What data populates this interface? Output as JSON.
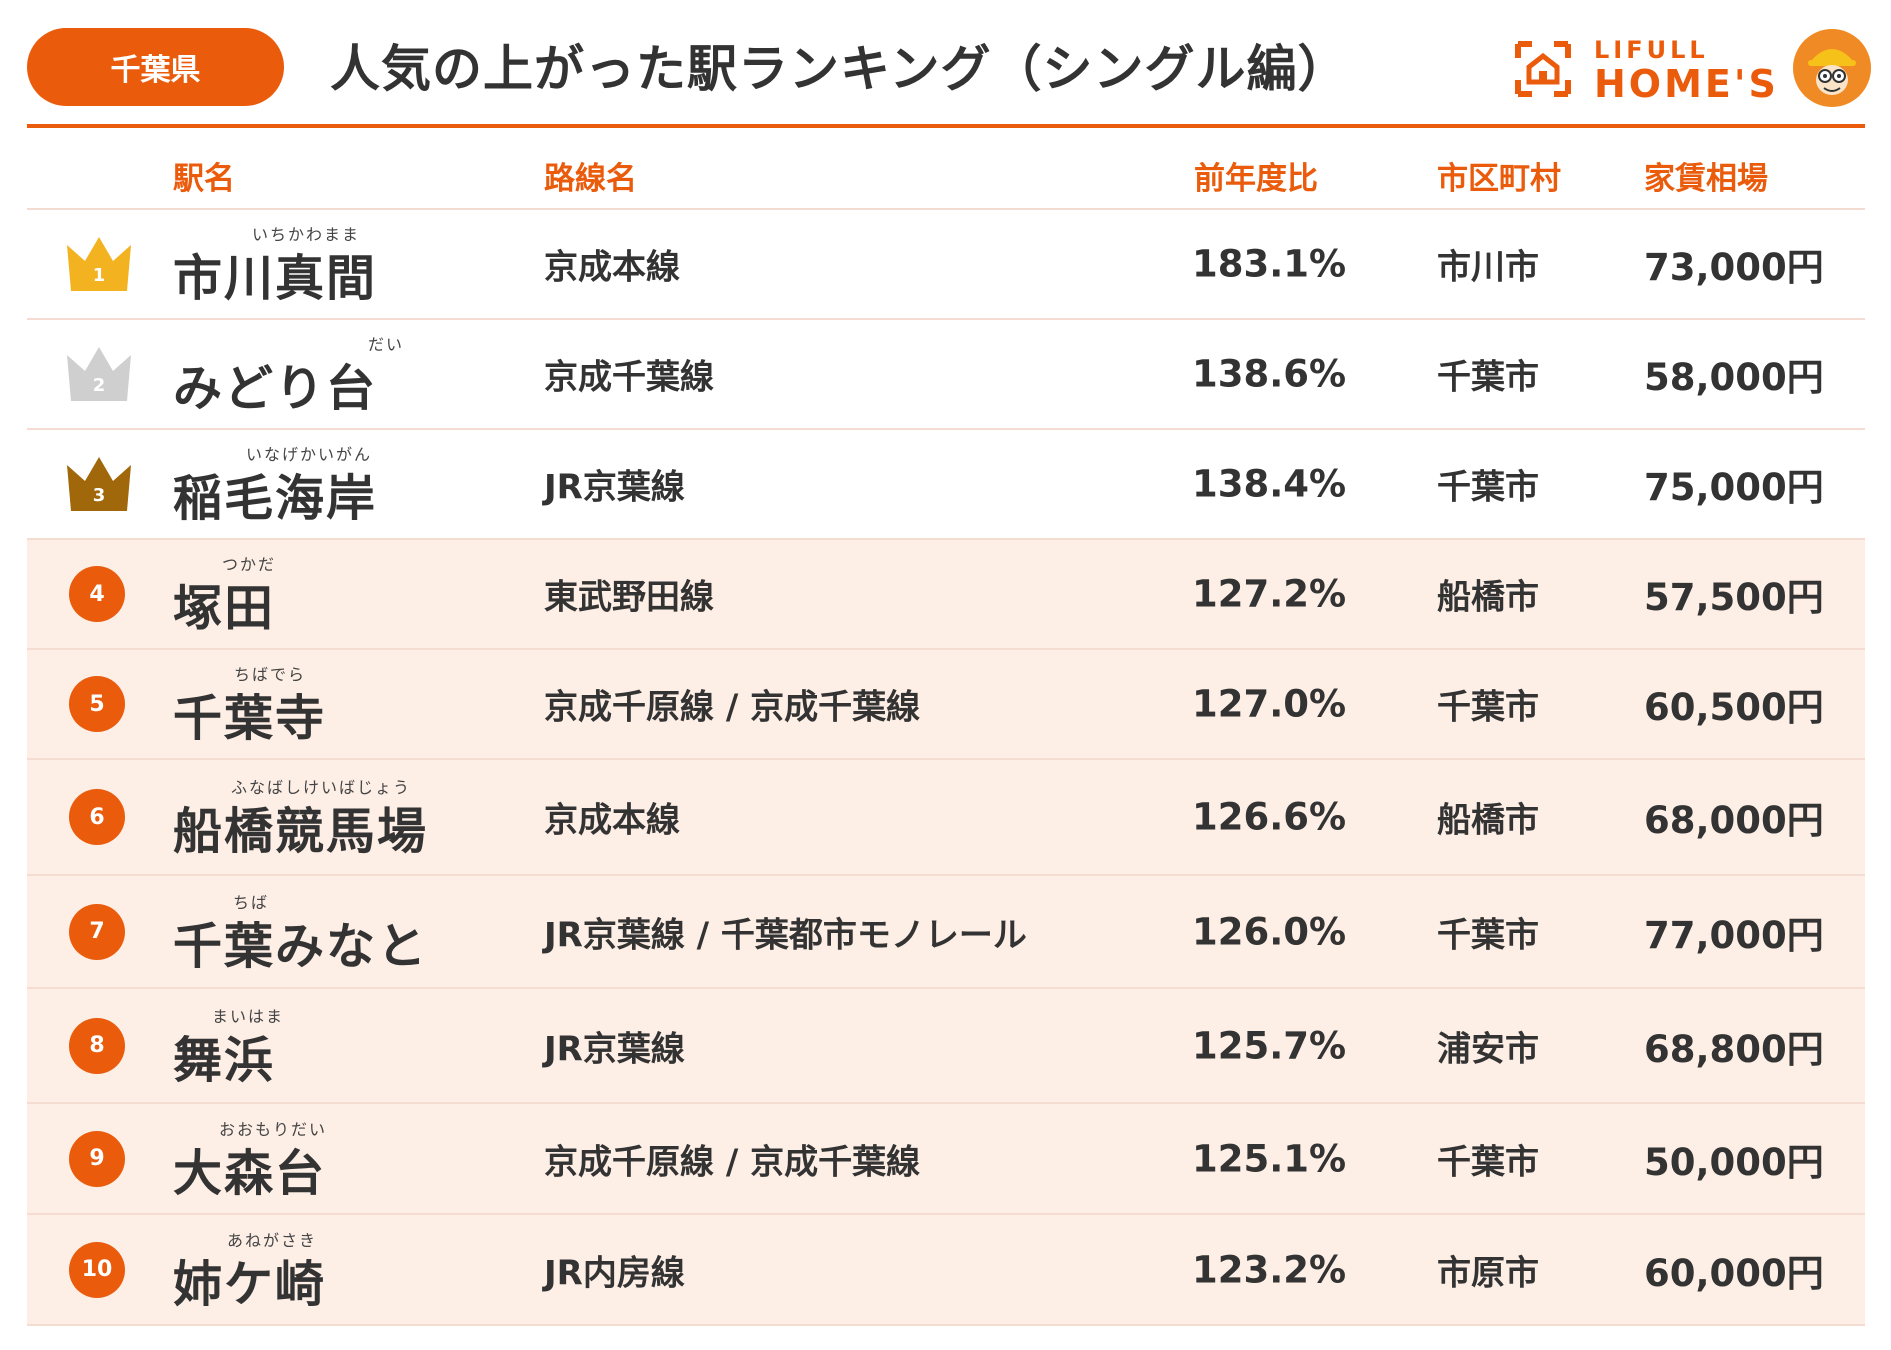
{
  "header": {
    "prefecture": "千葉県",
    "title": "人気の上がった駅ランキング（シングル編）",
    "logo_small": "LIFULL",
    "logo_big": "HOME'S"
  },
  "colors": {
    "accent": "#ea5b0c",
    "gold": "#f3b21f",
    "silver": "#cfcfcf",
    "bronze": "#a0680a",
    "row_tint": "#fdeee6"
  },
  "table": {
    "headers": {
      "station": "駅名",
      "line": "路線名",
      "ratio": "前年度比",
      "city": "市区町村",
      "rent": "家賃相場"
    },
    "rows": [
      {
        "rank": "1",
        "ruby": "いちかわまま",
        "station": "市川真間",
        "line": "京成本線",
        "ratio": "183.1%",
        "city": "市川市",
        "rent": "73,000円"
      },
      {
        "rank": "2",
        "ruby": "だい",
        "station": "みどり台",
        "line": "京成千葉線",
        "ratio": "138.6%",
        "city": "千葉市",
        "rent": "58,000円"
      },
      {
        "rank": "3",
        "ruby": "いなげかいがん",
        "station": "稲毛海岸",
        "line": "JR京葉線",
        "ratio": "138.4%",
        "city": "千葉市",
        "rent": "75,000円"
      },
      {
        "rank": "4",
        "ruby": "つかだ",
        "station": "塚田",
        "line": "東武野田線",
        "ratio": "127.2%",
        "city": "船橋市",
        "rent": "57,500円"
      },
      {
        "rank": "5",
        "ruby": "ちばでら",
        "station": "千葉寺",
        "line": "京成千原線 / 京成千葉線",
        "ratio": "127.0%",
        "city": "千葉市",
        "rent": "60,500円"
      },
      {
        "rank": "6",
        "ruby": "ふなばしけいばじょう",
        "station": "船橋競馬場",
        "line": "京成本線",
        "ratio": "126.6%",
        "city": "船橋市",
        "rent": "68,000円"
      },
      {
        "rank": "7",
        "ruby": "ちば",
        "station": "千葉みなと",
        "line": "JR京葉線 / 千葉都市モノレール",
        "ratio": "126.0%",
        "city": "千葉市",
        "rent": "77,000円"
      },
      {
        "rank": "8",
        "ruby": "まいはま",
        "station": "舞浜",
        "line": "JR京葉線",
        "ratio": "125.7%",
        "city": "浦安市",
        "rent": "68,800円"
      },
      {
        "rank": "9",
        "ruby": "おおもりだい",
        "station": "大森台",
        "line": "京成千原線 / 京成千葉線",
        "ratio": "125.1%",
        "city": "千葉市",
        "rent": "50,000円"
      },
      {
        "rank": "10",
        "ruby": "あねがさき",
        "station": "姉ケ崎",
        "line": "JR内房線",
        "ratio": "123.2%",
        "city": "市原市",
        "rent": "60,000円"
      }
    ]
  }
}
